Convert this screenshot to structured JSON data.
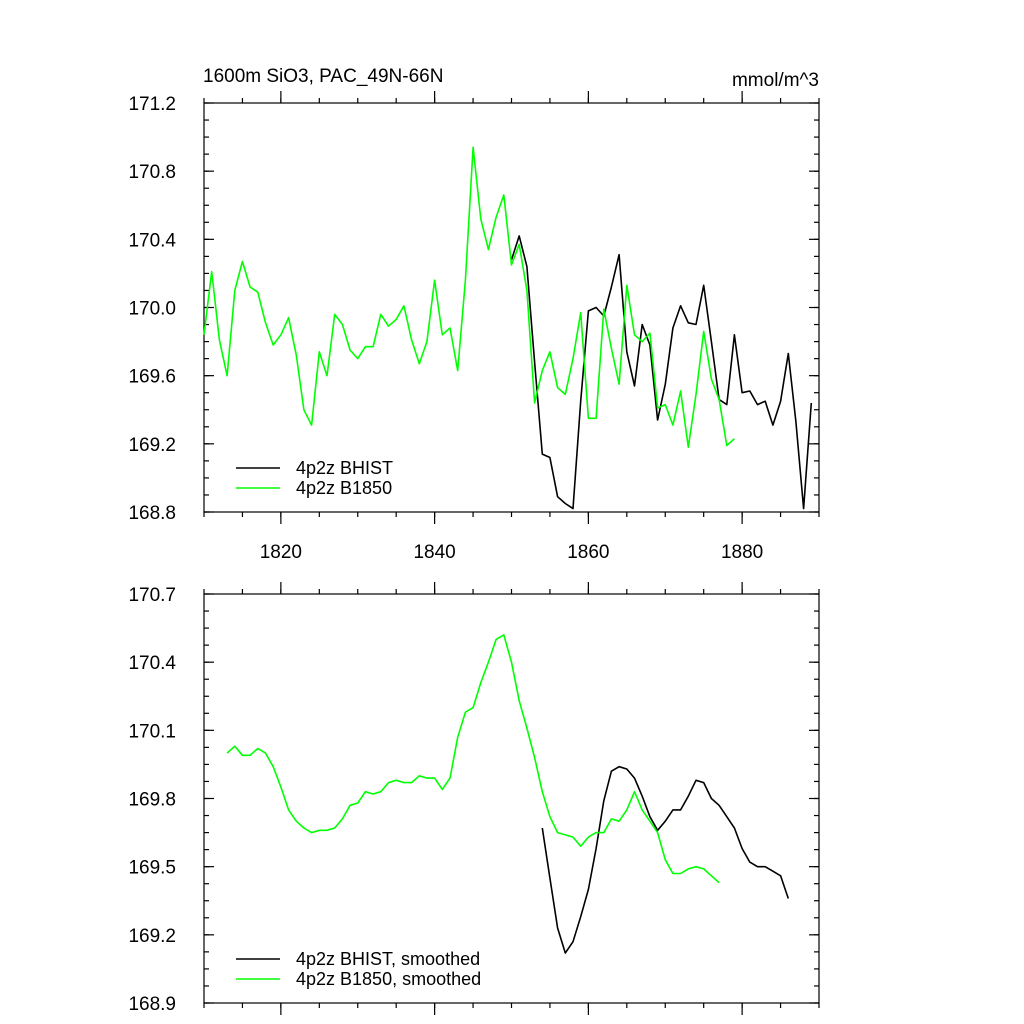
{
  "header": {
    "title": "1600m SiO3, PAC_49N-66N",
    "units": "mmol/m^3"
  },
  "colors": {
    "bhist": "#000000",
    "b1850": "#00ff00"
  },
  "chart_data": [
    {
      "type": "line",
      "title": "1600m SiO3, PAC_49N-66N",
      "xlabel": "",
      "ylabel": "",
      "xlim": [
        1810,
        1890
      ],
      "ylim": [
        168.8,
        171.2
      ],
      "yticks": [
        168.8,
        169.2,
        169.6,
        170.0,
        170.4,
        170.8,
        171.2
      ],
      "ytick_labels": [
        "168.8",
        "169.2",
        "169.6",
        "170.0",
        "170.4",
        "170.8",
        "171.2"
      ],
      "xticks": [
        1820,
        1840,
        1860,
        1880
      ],
      "xtick_labels": [
        "1820",
        "1840",
        "1860",
        "1880"
      ],
      "legend": "bottom-left",
      "grid": false,
      "series": [
        {
          "name": "4p2z BHIST",
          "color": "#000000",
          "x": [
            1850,
            1851,
            1852,
            1853,
            1854,
            1855,
            1856,
            1857,
            1858,
            1859,
            1860,
            1861,
            1862,
            1863,
            1864,
            1865,
            1866,
            1867,
            1868,
            1869,
            1870,
            1871,
            1872,
            1873,
            1874,
            1875,
            1876,
            1877,
            1878,
            1879,
            1880,
            1881,
            1882,
            1883,
            1884,
            1885,
            1886,
            1887,
            1888,
            1889
          ],
          "y": [
            170.28,
            170.42,
            170.24,
            169.68,
            169.14,
            169.12,
            168.89,
            168.85,
            168.82,
            169.45,
            169.98,
            170.0,
            169.95,
            170.12,
            170.31,
            169.74,
            169.54,
            169.9,
            169.78,
            169.34,
            169.55,
            169.88,
            170.01,
            169.91,
            169.9,
            170.13,
            169.8,
            169.46,
            169.43,
            169.84,
            169.5,
            169.51,
            169.43,
            169.45,
            169.31,
            169.45,
            169.73,
            169.33,
            168.82,
            169.44
          ]
        },
        {
          "name": "4p2z B1850",
          "color": "#00ff00",
          "x": [
            1810,
            1811,
            1812,
            1813,
            1814,
            1815,
            1816,
            1817,
            1818,
            1819,
            1820,
            1821,
            1822,
            1823,
            1824,
            1825,
            1826,
            1827,
            1828,
            1829,
            1830,
            1831,
            1832,
            1833,
            1834,
            1835,
            1836,
            1837,
            1838,
            1839,
            1840,
            1841,
            1842,
            1843,
            1844,
            1845,
            1846,
            1847,
            1848,
            1849,
            1850,
            1851,
            1852,
            1853,
            1854,
            1855,
            1856,
            1857,
            1858,
            1859,
            1860,
            1861,
            1862,
            1863,
            1864,
            1865,
            1866,
            1867,
            1868,
            1869,
            1870,
            1871,
            1872,
            1873,
            1874,
            1875,
            1876,
            1877,
            1878,
            1879
          ],
          "y": [
            169.84,
            170.21,
            169.81,
            169.6,
            170.1,
            170.27,
            170.12,
            170.09,
            169.91,
            169.78,
            169.84,
            169.94,
            169.72,
            169.4,
            169.31,
            169.74,
            169.6,
            169.96,
            169.9,
            169.75,
            169.7,
            169.77,
            169.77,
            169.96,
            169.89,
            169.93,
            170.01,
            169.81,
            169.67,
            169.8,
            170.16,
            169.84,
            169.88,
            169.63,
            170.16,
            170.94,
            170.52,
            170.34,
            170.53,
            170.66,
            170.25,
            170.37,
            170.1,
            169.44,
            169.63,
            169.74,
            169.53,
            169.49,
            169.7,
            169.97,
            169.35,
            169.35,
            169.99,
            169.76,
            169.55,
            170.13,
            169.84,
            169.8,
            169.85,
            169.41,
            169.43,
            169.31,
            169.51,
            169.18,
            169.49,
            169.86,
            169.58,
            169.46,
            169.19,
            169.23
          ]
        }
      ]
    },
    {
      "type": "line",
      "xlabel": "",
      "ylabel": "",
      "xlim": [
        1810,
        1890
      ],
      "ylim": [
        168.9,
        170.7
      ],
      "yticks": [
        168.9,
        169.2,
        169.5,
        169.8,
        170.1,
        170.4,
        170.7
      ],
      "ytick_labels": [
        "168.9",
        "169.2",
        "169.5",
        "169.8",
        "170.1",
        "170.4",
        "170.7"
      ],
      "xticks": [
        1820,
        1840,
        1860,
        1880
      ],
      "legend": "bottom-left",
      "grid": false,
      "series": [
        {
          "name": "4p2z BHIST, smoothed",
          "color": "#000000",
          "x": [
            1854,
            1855,
            1856,
            1857,
            1858,
            1859,
            1860,
            1861,
            1862,
            1863,
            1864,
            1865,
            1866,
            1867,
            1868,
            1869,
            1870,
            1871,
            1872,
            1873,
            1874,
            1875,
            1876,
            1877,
            1878,
            1879,
            1880,
            1881,
            1882,
            1883,
            1884,
            1885,
            1886
          ],
          "y": [
            169.67,
            169.45,
            169.23,
            169.12,
            169.17,
            169.28,
            169.4,
            169.58,
            169.79,
            169.92,
            169.94,
            169.93,
            169.89,
            169.81,
            169.72,
            169.66,
            169.7,
            169.75,
            169.75,
            169.81,
            169.88,
            169.87,
            169.8,
            169.77,
            169.72,
            169.67,
            169.58,
            169.52,
            169.5,
            169.5,
            169.48,
            169.46,
            169.36
          ]
        },
        {
          "name": "4p2z B1850, smoothed",
          "color": "#00ff00",
          "x": [
            1813,
            1814,
            1815,
            1816,
            1817,
            1818,
            1819,
            1820,
            1821,
            1822,
            1823,
            1824,
            1825,
            1826,
            1827,
            1828,
            1829,
            1830,
            1831,
            1832,
            1833,
            1834,
            1835,
            1836,
            1837,
            1838,
            1839,
            1840,
            1841,
            1842,
            1843,
            1844,
            1845,
            1846,
            1847,
            1848,
            1849,
            1850,
            1851,
            1852,
            1853,
            1854,
            1855,
            1856,
            1857,
            1858,
            1859,
            1860,
            1861,
            1862,
            1863,
            1864,
            1865,
            1866,
            1867,
            1868,
            1869,
            1870,
            1871,
            1872,
            1873,
            1874,
            1875,
            1876,
            1877
          ],
          "y": [
            170.0,
            170.03,
            169.99,
            169.99,
            170.02,
            170.0,
            169.94,
            169.85,
            169.75,
            169.7,
            169.67,
            169.65,
            169.66,
            169.66,
            169.67,
            169.71,
            169.77,
            169.78,
            169.83,
            169.82,
            169.83,
            169.87,
            169.88,
            169.87,
            169.87,
            169.9,
            169.89,
            169.89,
            169.84,
            169.89,
            170.07,
            170.18,
            170.2,
            170.31,
            170.4,
            170.5,
            170.52,
            170.4,
            170.23,
            170.11,
            169.98,
            169.83,
            169.72,
            169.65,
            169.64,
            169.63,
            169.59,
            169.63,
            169.65,
            169.65,
            169.71,
            169.7,
            169.75,
            169.83,
            169.75,
            169.7,
            169.65,
            169.53,
            169.47,
            169.47,
            169.49,
            169.5,
            169.49,
            169.46,
            169.43
          ]
        }
      ]
    }
  ]
}
